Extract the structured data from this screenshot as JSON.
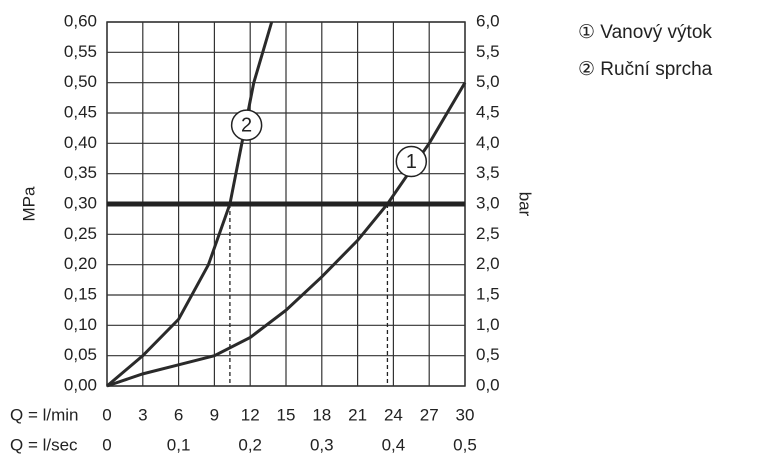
{
  "chart_data": {
    "type": "line",
    "xlabel": "Q = l/min",
    "x2label": "Q = l/sec",
    "ylabel": "MPa",
    "y2label": "bar",
    "xlim": [
      0,
      30
    ],
    "xticks": [
      0,
      3,
      6,
      9,
      12,
      15,
      18,
      21,
      24,
      27,
      30
    ],
    "x2lim": [
      0,
      0.5
    ],
    "x2ticks": [
      0,
      {
        "value": 0.1,
        "label": "0,1"
      },
      {
        "value": 0.2,
        "label": "0,2"
      },
      {
        "value": 0.3,
        "label": "0,3"
      },
      {
        "value": 0.4,
        "label": "0,4"
      },
      {
        "value": 0.5,
        "label": "0,5"
      }
    ],
    "ylim": [
      0,
      0.6
    ],
    "yticks": [
      {
        "value": 0,
        "label": "0,00"
      },
      {
        "value": 0.05,
        "label": "0,05"
      },
      {
        "value": 0.1,
        "label": "0,10"
      },
      {
        "value": 0.15,
        "label": "0,15"
      },
      {
        "value": 0.2,
        "label": "0,20"
      },
      {
        "value": 0.25,
        "label": "0,25"
      },
      {
        "value": 0.3,
        "label": "0,30"
      },
      {
        "value": 0.35,
        "label": "0,35"
      },
      {
        "value": 0.4,
        "label": "0,40"
      },
      {
        "value": 0.45,
        "label": "0,45"
      },
      {
        "value": 0.5,
        "label": "0,50"
      },
      {
        "value": 0.55,
        "label": "0,55"
      },
      {
        "value": 0.6,
        "label": "0,60"
      }
    ],
    "y2lim": [
      0,
      6
    ],
    "y2ticks": [
      {
        "value": 0,
        "label": "0,0"
      },
      {
        "value": 0.5,
        "label": "0,5"
      },
      {
        "value": 1,
        "label": "1,0"
      },
      {
        "value": 1.5,
        "label": "1,5"
      },
      {
        "value": 2,
        "label": "2,0"
      },
      {
        "value": 2.5,
        "label": "2,5"
      },
      {
        "value": 3,
        "label": "3,0"
      },
      {
        "value": 3.5,
        "label": "3,5"
      },
      {
        "value": 4,
        "label": "4,0"
      },
      {
        "value": 4.5,
        "label": "4,5"
      },
      {
        "value": 5,
        "label": "5,0"
      },
      {
        "value": 5.5,
        "label": "5,5"
      },
      {
        "value": 6,
        "label": "6,0"
      }
    ],
    "grid": true,
    "reference_y": 0.3,
    "series": [
      {
        "name": "① Vanový výtok",
        "label": "1",
        "color": "#2a2a2a",
        "label_at": [
          25.5,
          0.37
        ],
        "cross_x": 23.5,
        "x": [
          0,
          3,
          6,
          9,
          12,
          15,
          18,
          21,
          23.5,
          27,
          30
        ],
        "values": [
          0,
          0.02,
          0.035,
          0.05,
          0.08,
          0.125,
          0.18,
          0.24,
          0.3,
          0.4,
          0.5
        ]
      },
      {
        "name": "② Ruční sprcha",
        "label": "2",
        "color": "#2a2a2a",
        "label_at": [
          11.7,
          0.43
        ],
        "cross_x": 10.3,
        "x": [
          0,
          3,
          6,
          8.5,
          10.3,
          11.3,
          12.3,
          13.8
        ],
        "values": [
          0,
          0.05,
          0.11,
          0.2,
          0.3,
          0.4,
          0.5,
          0.6
        ]
      }
    ]
  }
}
